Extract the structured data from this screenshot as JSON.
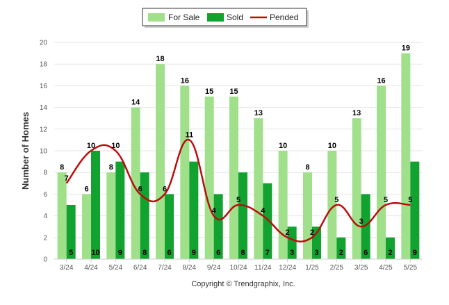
{
  "chart_data": {
    "type": "bar",
    "categories": [
      "3/24",
      "4/24",
      "5/24",
      "6/24",
      "7/24",
      "8/24",
      "9/24",
      "10/24",
      "11/24",
      "12/24",
      "1/25",
      "2/25",
      "3/25",
      "4/25",
      "5/25"
    ],
    "series": [
      {
        "name": "For Sale",
        "kind": "bar",
        "color": "#a0e08b",
        "values": [
          8,
          6,
          8,
          14,
          18,
          16,
          15,
          15,
          13,
          10,
          8,
          10,
          13,
          16,
          19
        ]
      },
      {
        "name": "Sold",
        "kind": "bar",
        "color": "#12a22f",
        "values": [
          5,
          10,
          9,
          8,
          6,
          9,
          6,
          8,
          7,
          3,
          3,
          2,
          6,
          2,
          9
        ]
      },
      {
        "name": "Pended",
        "kind": "line",
        "color": "#bb0d0d",
        "values": [
          7,
          10,
          10,
          6,
          6,
          11,
          4,
          5,
          4,
          2,
          2,
          5,
          3,
          5,
          5
        ]
      }
    ],
    "ylabel": "Number of Homes",
    "xlabel": "",
    "ylim": [
      0,
      20
    ],
    "yticks": [
      0,
      2,
      4,
      6,
      8,
      10,
      12,
      14,
      16,
      18,
      20
    ],
    "legend": "top-center",
    "grid": true
  },
  "credit": "Copyright © Trendgraphix, Inc."
}
